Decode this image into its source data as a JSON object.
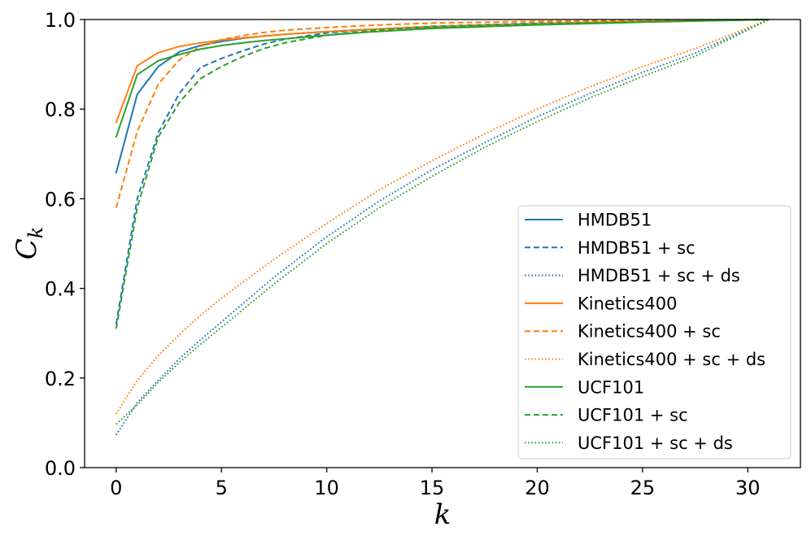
{
  "chart_data": {
    "type": "line",
    "xlabel": "k",
    "ylabel": "C",
    "ylabel_sub": "k",
    "xlim": [
      -1.5,
      32.5
    ],
    "ylim": [
      0.0,
      1.0
    ],
    "xticks": [
      0,
      5,
      10,
      15,
      20,
      25,
      30
    ],
    "xtick_labels": [
      "0",
      "5",
      "10",
      "15",
      "20",
      "25",
      "30"
    ],
    "yticks": [
      0.0,
      0.2,
      0.4,
      0.6,
      0.8,
      1.0
    ],
    "ytick_labels": [
      "0.0",
      "0.2",
      "0.4",
      "0.6",
      "0.8",
      "1.0"
    ],
    "grid": false,
    "legend_position": "lower-right",
    "series": [
      {
        "name": "HMDB51",
        "color": "#1f77b4",
        "dash": "solid",
        "x": [
          0,
          1,
          2,
          3,
          4,
          5,
          6,
          7,
          8,
          10,
          12,
          15,
          20,
          25,
          31
        ],
        "y": [
          0.658,
          0.833,
          0.895,
          0.928,
          0.942,
          0.951,
          0.958,
          0.963,
          0.967,
          0.973,
          0.978,
          0.983,
          0.99,
          0.995,
          1.0
        ]
      },
      {
        "name": "HMDB51 + sc",
        "color": "#1f77b4",
        "dash": "dashed",
        "x": [
          0,
          1,
          2,
          3,
          4,
          5,
          6,
          7,
          8,
          10,
          12,
          15,
          20,
          25,
          31
        ],
        "y": [
          0.32,
          0.6,
          0.748,
          0.835,
          0.893,
          0.913,
          0.93,
          0.945,
          0.956,
          0.97,
          0.978,
          0.985,
          0.992,
          0.996,
          1.0
        ]
      },
      {
        "name": "HMDB51 + sc + ds",
        "color": "#1f77b4",
        "dash": "dotted",
        "x": [
          0,
          1,
          2,
          3,
          4,
          5,
          7.5,
          10,
          12.5,
          15,
          17.5,
          20,
          22.5,
          25,
          27.5,
          31
        ],
        "y": [
          0.073,
          0.145,
          0.195,
          0.243,
          0.285,
          0.325,
          0.425,
          0.515,
          0.595,
          0.665,
          0.725,
          0.783,
          0.835,
          0.882,
          0.925,
          1.0
        ]
      },
      {
        "name": "Kinetics400",
        "color": "#ff7f0e",
        "dash": "solid",
        "x": [
          0,
          1,
          2,
          3,
          4,
          5,
          6,
          7,
          8,
          10,
          12,
          15,
          20,
          25,
          31
        ],
        "y": [
          0.77,
          0.897,
          0.926,
          0.94,
          0.948,
          0.954,
          0.959,
          0.963,
          0.967,
          0.973,
          0.978,
          0.984,
          0.991,
          0.996,
          1.0
        ]
      },
      {
        "name": "Kinetics400 + sc",
        "color": "#ff7f0e",
        "dash": "dashed",
        "x": [
          0,
          1,
          2,
          3,
          4,
          5,
          6,
          7,
          8,
          10,
          12,
          15,
          20,
          25,
          31
        ],
        "y": [
          0.58,
          0.75,
          0.856,
          0.91,
          0.94,
          0.955,
          0.964,
          0.971,
          0.976,
          0.982,
          0.987,
          0.992,
          0.996,
          0.998,
          1.0
        ]
      },
      {
        "name": "Kinetics400 + sc + ds",
        "color": "#ff7f0e",
        "dash": "dotted",
        "x": [
          0,
          1,
          2,
          3,
          4,
          5,
          7.5,
          10,
          12.5,
          15,
          17.5,
          20,
          22.5,
          25,
          27.5,
          31
        ],
        "y": [
          0.12,
          0.195,
          0.25,
          0.297,
          0.34,
          0.378,
          0.465,
          0.545,
          0.62,
          0.685,
          0.745,
          0.8,
          0.85,
          0.895,
          0.935,
          1.0
        ]
      },
      {
        "name": "UCF101",
        "color": "#2ca02c",
        "dash": "solid",
        "x": [
          0,
          1,
          2,
          3,
          4,
          5,
          6,
          7,
          8,
          10,
          12,
          15,
          20,
          25,
          31
        ],
        "y": [
          0.738,
          0.877,
          0.908,
          0.922,
          0.934,
          0.942,
          0.948,
          0.953,
          0.957,
          0.965,
          0.972,
          0.98,
          0.988,
          0.994,
          1.0
        ]
      },
      {
        "name": "UCF101 + sc",
        "color": "#2ca02c",
        "dash": "dashed",
        "x": [
          0,
          1,
          2,
          3,
          4,
          5,
          6,
          7,
          8,
          10,
          12,
          15,
          20,
          25,
          31
        ],
        "y": [
          0.31,
          0.58,
          0.738,
          0.815,
          0.868,
          0.895,
          0.917,
          0.935,
          0.948,
          0.965,
          0.975,
          0.984,
          0.991,
          0.995,
          1.0
        ]
      },
      {
        "name": "UCF101 + sc + ds",
        "color": "#2ca02c",
        "dash": "dotted",
        "x": [
          0,
          1,
          2,
          3,
          4,
          5,
          7.5,
          10,
          12.5,
          15,
          17.5,
          20,
          22.5,
          25,
          27.5,
          31
        ],
        "y": [
          0.097,
          0.14,
          0.19,
          0.235,
          0.275,
          0.313,
          0.41,
          0.5,
          0.58,
          0.65,
          0.715,
          0.772,
          0.825,
          0.873,
          0.918,
          1.0
        ]
      }
    ]
  }
}
